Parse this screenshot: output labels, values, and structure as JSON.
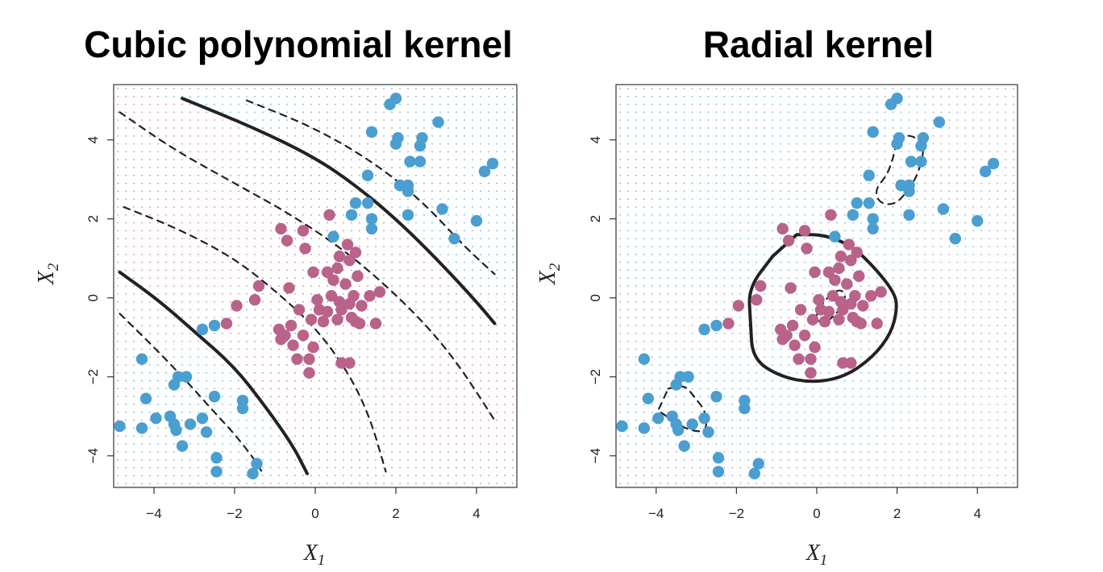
{
  "chart_data": [
    {
      "type": "scatter",
      "title": "Cubic polynomial kernel",
      "xlabel": "X1",
      "ylabel": "X2",
      "xlim": [
        -5,
        5
      ],
      "ylim": [
        -4.8,
        5.4
      ],
      "xticks": [
        -4,
        -2,
        0,
        2,
        4
      ],
      "yticks": [
        -4,
        -2,
        0,
        2,
        4
      ],
      "grid": "dotted background showing predicted class regions",
      "region_colors": {
        "blue": "#5ea9d6",
        "purple": "#c9728f"
      },
      "series": [
        {
          "color": "#4a9ed0",
          "points": [
            [
              2.0,
              5.05
            ],
            [
              1.85,
              4.9
            ],
            [
              3.05,
              4.45
            ],
            [
              1.4,
              4.2
            ],
            [
              2.05,
              4.05
            ],
            [
              2.65,
              4.05
            ],
            [
              2.0,
              3.9
            ],
            [
              2.6,
              3.85
            ],
            [
              2.35,
              3.45
            ],
            [
              2.6,
              3.45
            ],
            [
              4.4,
              3.4
            ],
            [
              4.2,
              3.2
            ],
            [
              1.3,
              3.1
            ],
            [
              2.1,
              2.85
            ],
            [
              2.3,
              2.85
            ],
            [
              2.3,
              2.7
            ],
            [
              1.0,
              2.4
            ],
            [
              1.3,
              2.4
            ],
            [
              0.9,
              2.1
            ],
            [
              1.4,
              2.0
            ],
            [
              2.3,
              2.1
            ],
            [
              3.15,
              2.25
            ],
            [
              4.0,
              1.95
            ],
            [
              1.4,
              1.75
            ],
            [
              0.45,
              1.55
            ],
            [
              3.45,
              1.5
            ],
            [
              -2.5,
              -0.7
            ],
            [
              -2.8,
              -0.8
            ],
            [
              -4.3,
              -1.55
            ],
            [
              -3.4,
              -2.0
            ],
            [
              -3.2,
              -2.0
            ],
            [
              -3.5,
              -2.2
            ],
            [
              -4.2,
              -2.55
            ],
            [
              -2.5,
              -2.5
            ],
            [
              -1.8,
              -2.6
            ],
            [
              -1.8,
              -2.8
            ],
            [
              -4.85,
              -3.25
            ],
            [
              -4.3,
              -3.3
            ],
            [
              -3.95,
              -3.05
            ],
            [
              -3.6,
              -3.0
            ],
            [
              -3.5,
              -3.2
            ],
            [
              -3.1,
              -3.2
            ],
            [
              -3.45,
              -3.35
            ],
            [
              -2.8,
              -3.05
            ],
            [
              -2.7,
              -3.4
            ],
            [
              -3.3,
              -3.75
            ],
            [
              -2.45,
              -4.05
            ],
            [
              -2.45,
              -4.4
            ],
            [
              -1.45,
              -4.2
            ],
            [
              -1.55,
              -4.45
            ]
          ]
        },
        {
          "color": "#b9628a",
          "points": [
            [
              0.35,
              2.1
            ],
            [
              -0.85,
              1.75
            ],
            [
              -0.3,
              1.7
            ],
            [
              -0.7,
              1.45
            ],
            [
              -0.25,
              1.25
            ],
            [
              0.8,
              1.35
            ],
            [
              0.6,
              1.05
            ],
            [
              1.0,
              1.15
            ],
            [
              -0.05,
              0.65
            ],
            [
              0.3,
              0.65
            ],
            [
              0.85,
              0.95
            ],
            [
              0.55,
              0.75
            ],
            [
              0.45,
              0.45
            ],
            [
              0.75,
              0.35
            ],
            [
              1.05,
              0.55
            ],
            [
              -1.4,
              0.3
            ],
            [
              1.6,
              0.15
            ],
            [
              -0.65,
              0.25
            ],
            [
              0.95,
              0.05
            ],
            [
              1.35,
              0.05
            ],
            [
              0.05,
              -0.05
            ],
            [
              0.4,
              0.05
            ],
            [
              0.6,
              -0.1
            ],
            [
              0.85,
              -0.15
            ],
            [
              1.15,
              -0.2
            ],
            [
              -0.4,
              -0.3
            ],
            [
              0.1,
              -0.3
            ],
            [
              0.3,
              -0.35
            ],
            [
              0.65,
              -0.3
            ],
            [
              -1.95,
              -0.2
            ],
            [
              -1.5,
              -0.05
            ],
            [
              0.55,
              -0.55
            ],
            [
              0.9,
              -0.5
            ],
            [
              1.0,
              -0.6
            ],
            [
              -0.1,
              -0.55
            ],
            [
              0.2,
              -0.6
            ],
            [
              -2.2,
              -0.65
            ],
            [
              -0.6,
              -0.7
            ],
            [
              -0.9,
              -0.8
            ],
            [
              -0.75,
              -0.95
            ],
            [
              -0.3,
              -0.95
            ],
            [
              1.1,
              -0.65
            ],
            [
              1.5,
              -0.65
            ],
            [
              -0.85,
              -1.05
            ],
            [
              -0.55,
              -1.2
            ],
            [
              -0.05,
              -1.25
            ],
            [
              -0.45,
              -1.55
            ],
            [
              -0.15,
              -1.55
            ],
            [
              0.65,
              -1.65
            ],
            [
              0.85,
              -1.65
            ],
            [
              -0.15,
              -1.9
            ]
          ]
        }
      ],
      "boundaries": [
        {
          "style": "solid",
          "points": [
            [
              -3.3,
              5.05
            ],
            [
              -1.5,
              4.3
            ],
            [
              0.0,
              3.55
            ],
            [
              1.0,
              2.85
            ],
            [
              2.0,
              2.0
            ],
            [
              3.0,
              1.0
            ],
            [
              4.0,
              -0.1
            ],
            [
              4.45,
              -0.65
            ]
          ]
        },
        {
          "style": "solid",
          "points": [
            [
              -4.85,
              0.65
            ],
            [
              -3.9,
              -0.05
            ],
            [
              -3.0,
              -0.85
            ],
            [
              -2.0,
              -1.75
            ],
            [
              -1.2,
              -2.8
            ],
            [
              -0.55,
              -3.75
            ],
            [
              -0.2,
              -4.45
            ]
          ]
        },
        {
          "style": "dashed",
          "points": [
            [
              -1.7,
              5.0
            ],
            [
              0.0,
              4.3
            ],
            [
              1.5,
              3.4
            ],
            [
              2.7,
              2.4
            ],
            [
              3.7,
              1.3
            ],
            [
              4.45,
              0.6
            ]
          ]
        },
        {
          "style": "dashed",
          "points": [
            [
              -4.85,
              4.7
            ],
            [
              -3.5,
              3.75
            ],
            [
              -2.0,
              2.9
            ],
            [
              -0.5,
              2.05
            ],
            [
              1.0,
              1.0
            ],
            [
              2.5,
              -0.4
            ],
            [
              3.5,
              -1.6
            ],
            [
              4.45,
              -3.1
            ]
          ]
        },
        {
          "style": "dashed",
          "points": [
            [
              -4.75,
              2.3
            ],
            [
              -3.4,
              1.75
            ],
            [
              -2.0,
              1.0
            ],
            [
              -0.9,
              0.1
            ],
            [
              0.0,
              -0.75
            ],
            [
              0.8,
              -1.85
            ],
            [
              1.35,
              -3.0
            ],
            [
              1.75,
              -4.4
            ]
          ]
        },
        {
          "style": "dashed",
          "points": [
            [
              -4.85,
              -0.4
            ],
            [
              -4.0,
              -1.25
            ],
            [
              -3.2,
              -2.1
            ],
            [
              -2.5,
              -2.9
            ],
            [
              -2.0,
              -3.45
            ],
            [
              -1.5,
              -4.1
            ],
            [
              -1.3,
              -4.45
            ]
          ]
        }
      ]
    },
    {
      "type": "scatter",
      "title": "Radial kernel",
      "xlabel": "X1",
      "ylabel": "X2",
      "xlim": [
        -5,
        5
      ],
      "ylim": [
        -4.8,
        5.4
      ],
      "xticks": [
        -4,
        -2,
        0,
        2,
        4
      ],
      "yticks": [
        -4,
        -2,
        0,
        2,
        4
      ],
      "grid": "dotted background showing predicted class regions",
      "region_colors": {
        "blue": "#5ea9d6",
        "purple": "#c9728f"
      },
      "series": "same points as left panel",
      "boundaries": [
        {
          "style": "solid",
          "closed": true,
          "points": [
            [
              -0.5,
              1.6
            ],
            [
              0.2,
              1.6
            ],
            [
              0.9,
              1.3
            ],
            [
              1.5,
              0.7
            ],
            [
              1.95,
              0.1
            ],
            [
              2.0,
              -0.3
            ],
            [
              1.85,
              -0.9
            ],
            [
              1.4,
              -1.5
            ],
            [
              0.7,
              -2.0
            ],
            [
              -0.1,
              -2.15
            ],
            [
              -0.9,
              -2.0
            ],
            [
              -1.6,
              -1.55
            ],
            [
              -1.65,
              -0.6
            ],
            [
              -1.7,
              0.25
            ],
            [
              -1.1,
              1.05
            ]
          ]
        },
        {
          "style": "dashed",
          "closed": true,
          "points": [
            [
              -0.05,
              -0.55
            ],
            [
              0.15,
              -0.1
            ],
            [
              0.55,
              0.25
            ],
            [
              0.75,
              0.05
            ],
            [
              0.55,
              -0.35
            ],
            [
              0.2,
              -0.65
            ]
          ]
        },
        {
          "style": "dashed",
          "closed": true,
          "points": [
            [
              2.0,
              4.0
            ],
            [
              2.3,
              4.15
            ],
            [
              2.7,
              3.9
            ],
            [
              2.55,
              3.2
            ],
            [
              2.3,
              2.75
            ],
            [
              1.95,
              2.35
            ],
            [
              1.55,
              2.4
            ],
            [
              1.45,
              2.75
            ],
            [
              1.75,
              3.1
            ],
            [
              1.9,
              3.55
            ]
          ]
        },
        {
          "style": "dashed",
          "closed": true,
          "points": [
            [
              -3.7,
              -2.3
            ],
            [
              -3.3,
              -2.2
            ],
            [
              -3.05,
              -2.5
            ],
            [
              -2.75,
              -2.9
            ],
            [
              -2.75,
              -3.4
            ],
            [
              -3.2,
              -3.35
            ],
            [
              -3.6,
              -3.1
            ],
            [
              -3.95,
              -2.85
            ]
          ]
        }
      ]
    }
  ],
  "panels": {
    "left": {
      "title": "Cubic polynomial kernel",
      "ylabel_main": "X",
      "ylabel_sub": "2",
      "xlabel_main": "X",
      "xlabel_sub": "1"
    },
    "right": {
      "title": "Radial kernel",
      "ylabel_main": "X",
      "ylabel_sub": "2",
      "xlabel_main": "X",
      "xlabel_sub": "1"
    }
  }
}
